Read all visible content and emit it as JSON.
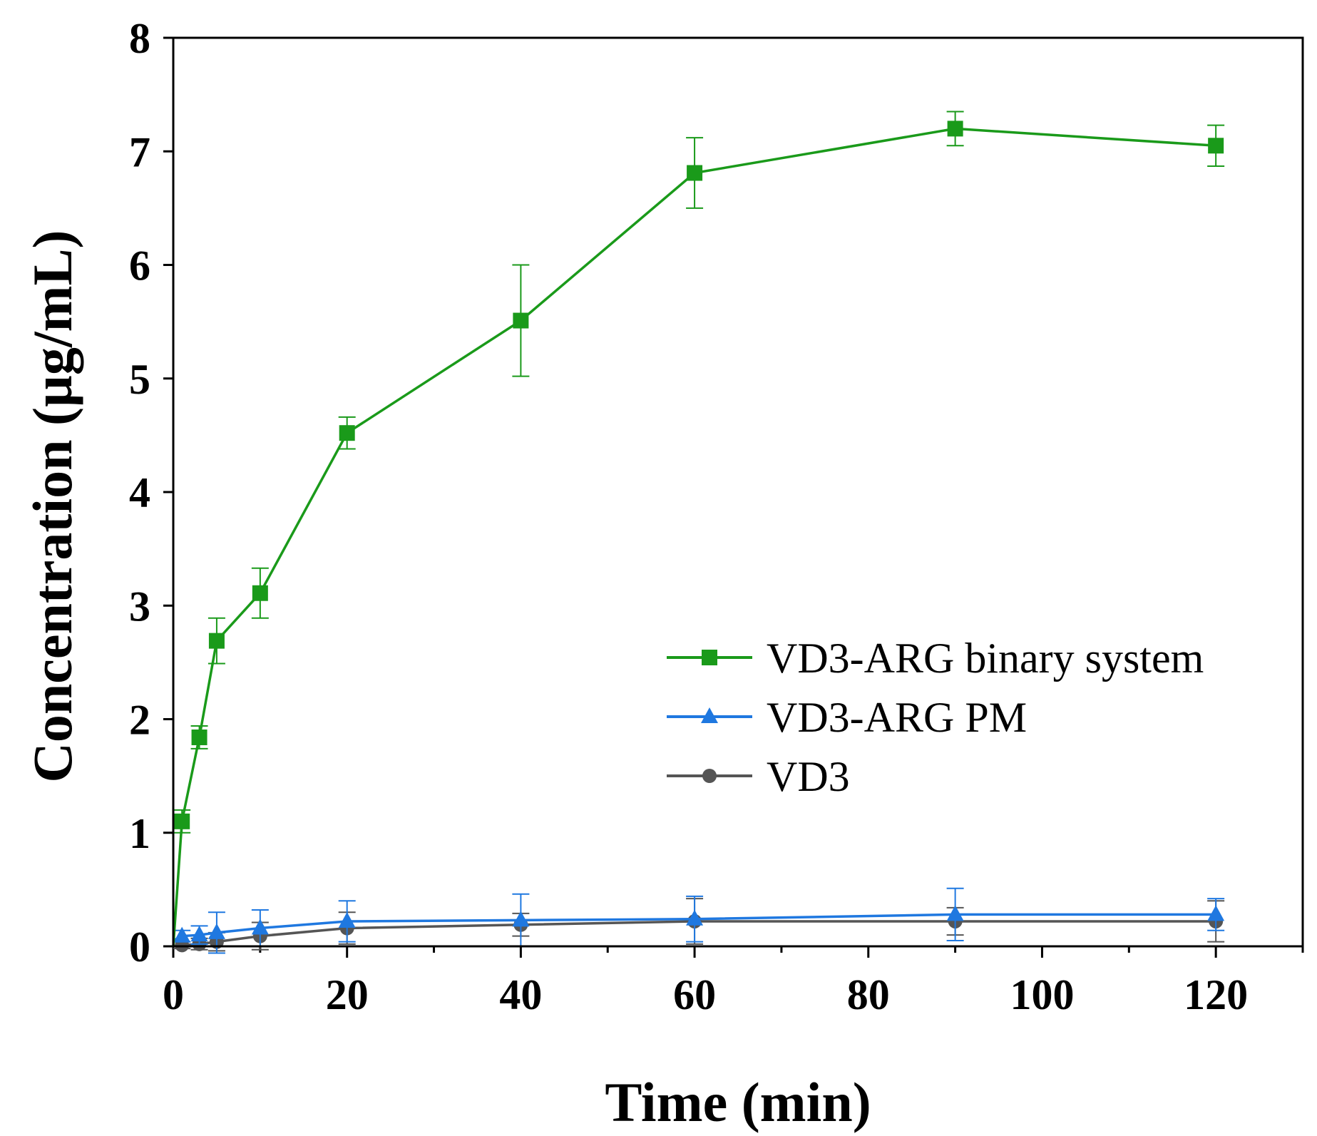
{
  "chart_data": {
    "type": "line",
    "xlabel": "Time (min)",
    "ylabel": "Concentration  (µg/mL)",
    "xlim": [
      0,
      130
    ],
    "ylim": [
      0,
      8
    ],
    "xticks": [
      0,
      20,
      40,
      60,
      80,
      100,
      120
    ],
    "yticks": [
      0,
      1,
      2,
      3,
      4,
      5,
      6,
      7,
      8
    ],
    "x_minor_step": 10,
    "legend_position": "center-right",
    "series": [
      {
        "name": "VD3-ARG binary system",
        "color": "#1a9a1a",
        "marker": "square",
        "x": [
          0,
          1,
          3,
          5,
          10,
          20,
          40,
          60,
          90,
          120
        ],
        "y": [
          0,
          1.1,
          1.84,
          2.69,
          3.11,
          4.52,
          5.51,
          6.81,
          7.2,
          7.05
        ],
        "err": [
          0,
          0.1,
          0.1,
          0.2,
          0.22,
          0.14,
          0.49,
          0.31,
          0.15,
          0.18
        ]
      },
      {
        "name": "VD3-ARG PM",
        "color": "#1f78e0",
        "marker": "triangle",
        "x": [
          0,
          1,
          3,
          5,
          10,
          20,
          40,
          60,
          90,
          120
        ],
        "y": [
          0.05,
          0.09,
          0.1,
          0.12,
          0.16,
          0.22,
          0.23,
          0.24,
          0.28,
          0.28
        ],
        "err": [
          0,
          0.05,
          0.08,
          0.18,
          0.16,
          0.18,
          0.23,
          0.2,
          0.23,
          0.14
        ]
      },
      {
        "name": "VD3",
        "color": "#555555",
        "marker": "circle",
        "x": [
          0,
          1,
          3,
          5,
          10,
          20,
          40,
          60,
          90,
          120
        ],
        "y": [
          0,
          0.01,
          0.02,
          0.04,
          0.09,
          0.16,
          0.19,
          0.22,
          0.22,
          0.22
        ],
        "err": [
          0,
          0.03,
          0.05,
          0.08,
          0.12,
          0.14,
          0.1,
          0.2,
          0.12,
          0.18
        ]
      }
    ]
  }
}
